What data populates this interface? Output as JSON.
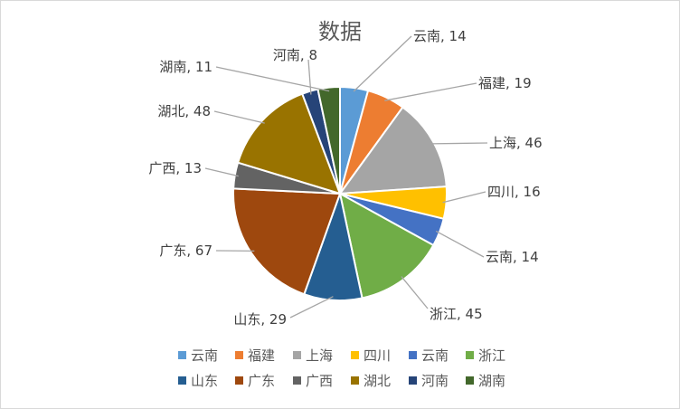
{
  "chart_data": {
    "type": "pie",
    "title": "数据",
    "legend_position": "bottom",
    "slices": [
      {
        "label": "云南",
        "value": 14,
        "color": "#5B9BD5"
      },
      {
        "label": "福建",
        "value": 19,
        "color": "#ED7D31"
      },
      {
        "label": "上海",
        "value": 46,
        "color": "#A5A5A5"
      },
      {
        "label": "四川",
        "value": 16,
        "color": "#FFC000"
      },
      {
        "label": "云南",
        "value": 14,
        "color": "#4472C4"
      },
      {
        "label": "浙江",
        "value": 45,
        "color": "#70AD47"
      },
      {
        "label": "山东",
        "value": 29,
        "color": "#255E91"
      },
      {
        "label": "广东",
        "value": 67,
        "color": "#9E480E"
      },
      {
        "label": "广西",
        "value": 13,
        "color": "#636363"
      },
      {
        "label": "湖北",
        "value": 48,
        "color": "#997300"
      },
      {
        "label": "河南",
        "value": 8,
        "color": "#264478"
      },
      {
        "label": "湖南",
        "value": 11,
        "color": "#43682B"
      }
    ]
  }
}
